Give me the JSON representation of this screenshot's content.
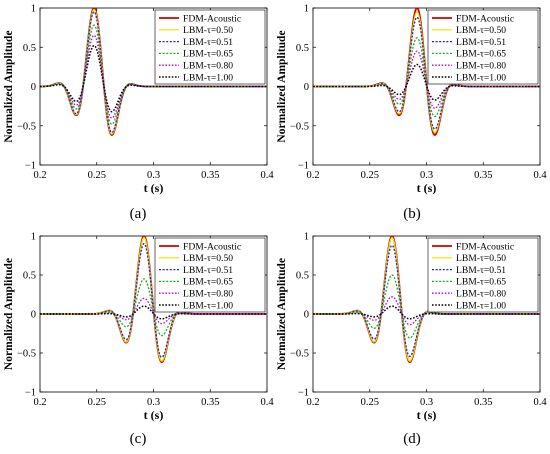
{
  "figure": {
    "panels_layout": "2x2 grid",
    "x_axis_label": "t (s)",
    "y_axis_label": "Normalized Amplitude",
    "x_ticks": [
      "0.2",
      "0.25",
      "0.3",
      "0.35",
      "0.4"
    ],
    "y_ticks": [
      "1",
      "0.5",
      "0",
      "−0.5",
      "−1"
    ],
    "legend_labels": [
      "FDM-Acoustic",
      "LBM-τ=0.50",
      "LBM-τ=0.51",
      "LBM-τ=0.65",
      "LBM-τ=0.80",
      "LBM-τ=1.00"
    ],
    "series_styles": [
      {
        "color": "#cc0000",
        "dash": "solid",
        "width": 1.8
      },
      {
        "color": "#e6e600",
        "dash": "solid",
        "width": 1.2
      },
      {
        "color": "#2222cc",
        "dash": "2,1.6",
        "width": 1.3
      },
      {
        "color": "#22aa22",
        "dash": "2,1.6",
        "width": 1.3
      },
      {
        "color": "#cc00cc",
        "dash": "1.6,1.6",
        "width": 1.3
      },
      {
        "color": "#000000",
        "dash": "1.6,1.6",
        "width": 1.5
      }
    ],
    "grid": false,
    "legend_placement": "top-right"
  },
  "chart_data": [
    {
      "type": "line",
      "caption": "(a)",
      "panel_label": "a",
      "xlabel": "t (s)",
      "ylabel": "Normalized Amplitude",
      "xlim": [
        0.2,
        0.4
      ],
      "ylim": [
        -1,
        1
      ],
      "xticks": [
        0.2,
        0.25,
        0.3,
        0.35,
        0.4
      ],
      "yticks": [
        1,
        0.5,
        0,
        -0.5,
        -1
      ],
      "legend_position": "top-right",
      "series": [
        {
          "name": "FDM-Acoustic",
          "peak_time": 0.248,
          "peak_amplitude": 1.0
        },
        {
          "name": "LBM-τ=0.50",
          "peak_time": 0.248,
          "peak_amplitude": 0.98
        },
        {
          "name": "LBM-τ=0.51",
          "peak_time": 0.248,
          "peak_amplitude": 0.95
        },
        {
          "name": "LBM-τ=0.65",
          "peak_time": 0.248,
          "peak_amplitude": 0.78
        },
        {
          "name": "LBM-τ=0.80",
          "peak_time": 0.248,
          "peak_amplitude": 0.65
        },
        {
          "name": "LBM-τ=1.00",
          "peak_time": 0.248,
          "peak_amplitude": 0.52
        }
      ]
    },
    {
      "type": "line",
      "caption": "(b)",
      "panel_label": "b",
      "xlabel": "t (s)",
      "ylabel": "Normalized Amplitude",
      "xlim": [
        0.2,
        0.4
      ],
      "ylim": [
        -1,
        1
      ],
      "xticks": [
        0.2,
        0.25,
        0.3,
        0.35,
        0.4
      ],
      "yticks": [
        1,
        0.5,
        0,
        -0.5,
        -1
      ],
      "legend_position": "top-right",
      "series": [
        {
          "name": "FDM-Acoustic",
          "peak_time": 0.292,
          "peak_amplitude": 1.0
        },
        {
          "name": "LBM-τ=0.50",
          "peak_time": 0.292,
          "peak_amplitude": 0.95
        },
        {
          "name": "LBM-τ=0.51",
          "peak_time": 0.292,
          "peak_amplitude": 0.88
        },
        {
          "name": "LBM-τ=0.65",
          "peak_time": 0.292,
          "peak_amplitude": 0.62
        },
        {
          "name": "LBM-τ=0.80",
          "peak_time": 0.292,
          "peak_amplitude": 0.45
        },
        {
          "name": "LBM-τ=1.00",
          "peak_time": 0.292,
          "peak_amplitude": 0.28
        }
      ]
    },
    {
      "type": "line",
      "caption": "(c)",
      "panel_label": "c",
      "xlabel": "t (s)",
      "ylabel": "Normalized Amplitude",
      "xlim": [
        0.2,
        0.4
      ],
      "ylim": [
        -1,
        1
      ],
      "xticks": [
        0.2,
        0.25,
        0.3,
        0.35,
        0.4
      ],
      "yticks": [
        1,
        0.5,
        0,
        -0.5,
        -1
      ],
      "legend_position": "top-right",
      "series": [
        {
          "name": "FDM-Acoustic",
          "peak_time": 0.292,
          "peak_amplitude": 1.0
        },
        {
          "name": "LBM-τ=0.50",
          "peak_time": 0.292,
          "peak_amplitude": 0.98
        },
        {
          "name": "LBM-τ=0.51",
          "peak_time": 0.292,
          "peak_amplitude": 0.9
        },
        {
          "name": "LBM-τ=0.65",
          "peak_time": 0.292,
          "peak_amplitude": 0.45
        },
        {
          "name": "LBM-τ=0.80",
          "peak_time": 0.292,
          "peak_amplitude": 0.2
        },
        {
          "name": "LBM-τ=1.00",
          "peak_time": 0.292,
          "peak_amplitude": 0.1
        }
      ]
    },
    {
      "type": "line",
      "caption": "(d)",
      "panel_label": "d",
      "xlabel": "t (s)",
      "ylabel": "Normalized Amplitude",
      "xlim": [
        0.2,
        0.4
      ],
      "ylim": [
        -1,
        1
      ],
      "xticks": [
        0.2,
        0.25,
        0.3,
        0.35,
        0.4
      ],
      "yticks": [
        1,
        0.5,
        0,
        -0.5,
        -1
      ],
      "legend_position": "top-right",
      "series": [
        {
          "name": "FDM-Acoustic",
          "peak_time": 0.27,
          "peak_amplitude": 1.0
        },
        {
          "name": "LBM-τ=0.50",
          "peak_time": 0.27,
          "peak_amplitude": 0.98
        },
        {
          "name": "LBM-τ=0.51",
          "peak_time": 0.27,
          "peak_amplitude": 0.88
        },
        {
          "name": "LBM-τ=0.65",
          "peak_time": 0.27,
          "peak_amplitude": 0.5
        },
        {
          "name": "LBM-τ=0.80",
          "peak_time": 0.27,
          "peak_amplitude": 0.22
        },
        {
          "name": "LBM-τ=1.00",
          "peak_time": 0.27,
          "peak_amplitude": 0.1
        }
      ]
    }
  ]
}
